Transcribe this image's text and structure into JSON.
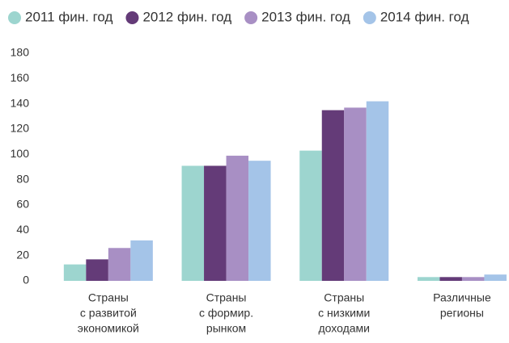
{
  "chart_data": {
    "type": "bar",
    "categories": [
      [
        "Страны",
        "с развитой",
        "экономикой"
      ],
      [
        "Страны",
        "с формир.",
        "рынком"
      ],
      [
        "Страны",
        "с низкими",
        "доходами"
      ],
      [
        "Различные",
        "регионы"
      ]
    ],
    "series": [
      {
        "name": "2011 фин. год",
        "color": "#9dd5cf",
        "values": [
          13,
          91,
          103,
          3
        ]
      },
      {
        "name": "2012 фин. год",
        "color": "#643b78",
        "values": [
          17,
          91,
          135,
          3
        ]
      },
      {
        "name": "2013 фин. год",
        "color": "#a88fc4",
        "values": [
          26,
          99,
          137,
          3
        ]
      },
      {
        "name": "2014 фин. год",
        "color": "#a4c4e8",
        "values": [
          32,
          95,
          142,
          5
        ]
      }
    ],
    "ylim": [
      0,
      180
    ],
    "yticks": [
      0,
      20,
      40,
      60,
      80,
      100,
      120,
      140,
      160,
      180
    ],
    "grid": false,
    "legend": "top"
  }
}
